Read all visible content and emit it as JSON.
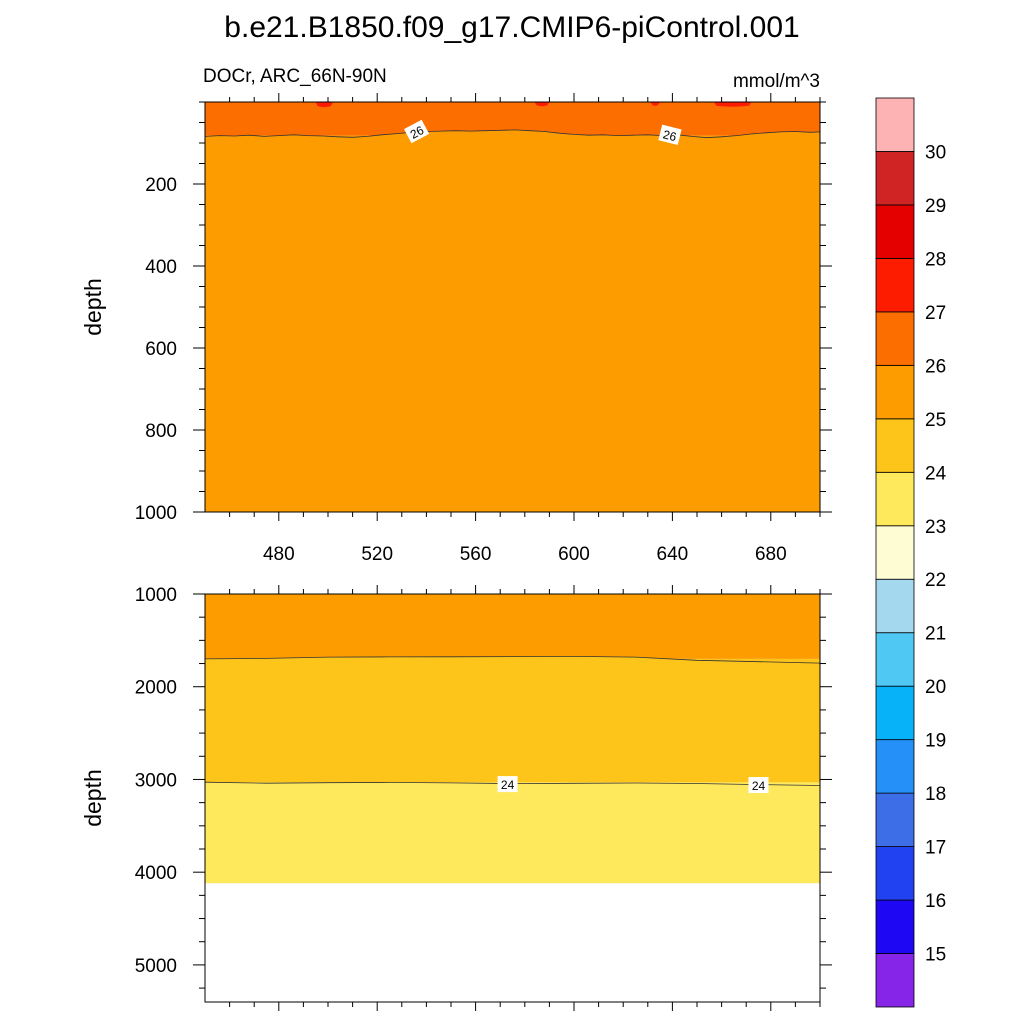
{
  "title": "b.e21.B1850.f09_g17.CMIP6-piControl.001",
  "left_string": "DOCr, ARC_66N-90N",
  "right_string": "mmol/m^3",
  "colors": {
    "white_fill": "#ffffff",
    "contour_line": "#333333",
    "label_box": "#ffffff"
  },
  "chart_data": [
    {
      "type": "heatmap",
      "panel": "upper",
      "xlim": [
        450,
        700
      ],
      "ylim": [
        0,
        1000
      ],
      "yreversed": true,
      "ylabel": "depth",
      "xticks": [
        480,
        520,
        560,
        600,
        640,
        680
      ],
      "xtick_labels": [
        "480",
        "520",
        "560",
        "600",
        "640",
        "680"
      ],
      "yticks": [
        200,
        400,
        600,
        800,
        1000
      ],
      "ytick_labels": [
        "200",
        "400",
        "600",
        "800",
        "1000"
      ],
      "fill_regions": [
        {
          "band": "25-26",
          "from_depth": 82,
          "to_depth": 1000
        },
        {
          "band": "26-27",
          "from_depth": 0,
          "to_depth": 82
        }
      ],
      "patches": [
        {
          "band": "27-28",
          "x_range": [
            495,
            502
          ],
          "max_depth": 10
        },
        {
          "band": "27-28",
          "x_range": [
            584,
            590
          ],
          "max_depth": 8
        },
        {
          "band": "27-28",
          "x_range": [
            631,
            635
          ],
          "max_depth": 7
        },
        {
          "band": "27-28",
          "x_range": [
            657,
            672
          ],
          "max_depth": 9
        }
      ],
      "contours": [
        {
          "level": 26,
          "x": [
            450,
            456,
            462,
            468,
            474,
            480,
            486,
            492,
            498,
            504,
            510,
            516,
            522,
            528,
            534,
            540,
            546,
            552,
            558,
            564,
            570,
            576,
            582,
            588,
            594,
            600,
            606,
            612,
            618,
            624,
            630,
            636,
            642,
            648,
            654,
            660,
            666,
            672,
            678,
            684,
            690,
            696,
            700
          ],
          "depth": [
            84,
            82,
            83,
            81,
            84,
            82,
            80,
            82,
            83,
            85,
            86,
            84,
            80,
            77,
            74,
            72,
            71,
            70,
            71,
            70,
            69,
            68,
            70,
            72,
            76,
            79,
            81,
            80,
            82,
            81,
            80,
            82,
            80,
            84,
            87,
            85,
            82,
            78,
            75,
            73,
            72,
            74,
            73
          ]
        }
      ],
      "contour_labels": [
        {
          "text": "26",
          "x": 536,
          "depth": 72,
          "angle": -28
        },
        {
          "text": "26",
          "x": 639,
          "depth": 80,
          "angle": 14
        }
      ]
    },
    {
      "type": "heatmap",
      "panel": "lower",
      "xlim": [
        450,
        700
      ],
      "ylim": [
        1000,
        5400
      ],
      "yreversed": true,
      "ylabel": "depth",
      "xticks": [
        480,
        520,
        560,
        600,
        640,
        680
      ],
      "yticks": [
        1000,
        2000,
        3000,
        4000,
        5000
      ],
      "ytick_labels": [
        "1000",
        "2000",
        "3000",
        "4000",
        "5000"
      ],
      "fill_regions": [
        {
          "band": "25-26",
          "from_depth": 1000,
          "to_depth": 1700
        },
        {
          "band": "24-25",
          "from_depth": 1700,
          "to_depth": 3030
        },
        {
          "band": "23-24",
          "from_depth": 3030,
          "to_depth": 4120
        },
        {
          "band": "missing",
          "from_depth": 4120,
          "to_depth": 5400
        }
      ],
      "contours": [
        {
          "level": 25,
          "x": [
            450,
            475,
            500,
            525,
            550,
            575,
            600,
            625,
            650,
            675,
            700
          ],
          "depth": [
            1700,
            1695,
            1680,
            1678,
            1677,
            1675,
            1673,
            1680,
            1715,
            1730,
            1745
          ]
        },
        {
          "level": 24,
          "x": [
            450,
            475,
            500,
            525,
            550,
            575,
            600,
            625,
            650,
            675,
            700
          ],
          "depth": [
            3030,
            3040,
            3035,
            3032,
            3037,
            3045,
            3042,
            3038,
            3044,
            3055,
            3065
          ]
        }
      ],
      "contour_labels": [
        {
          "text": "24",
          "x": 573,
          "depth": 3050
        },
        {
          "text": "24",
          "x": 675,
          "depth": 3060
        }
      ]
    }
  ],
  "colorbar": {
    "labels": [
      "15",
      "16",
      "17",
      "18",
      "19",
      "20",
      "21",
      "22",
      "23",
      "24",
      "25",
      "26",
      "27",
      "28",
      "29",
      "30"
    ],
    "colors_bottom_to_top": [
      "#8624e8",
      "#1e07f2",
      "#2142f0",
      "#3d6ee8",
      "#2590f7",
      "#08b2f8",
      "#50c8f4",
      "#a3d8ee",
      "#fdfcd2",
      "#fee85c",
      "#fdc41a",
      "#fc9c00",
      "#fd6e00",
      "#fe1c00",
      "#e50000",
      "#d02424",
      "#fdb3b3"
    ]
  }
}
